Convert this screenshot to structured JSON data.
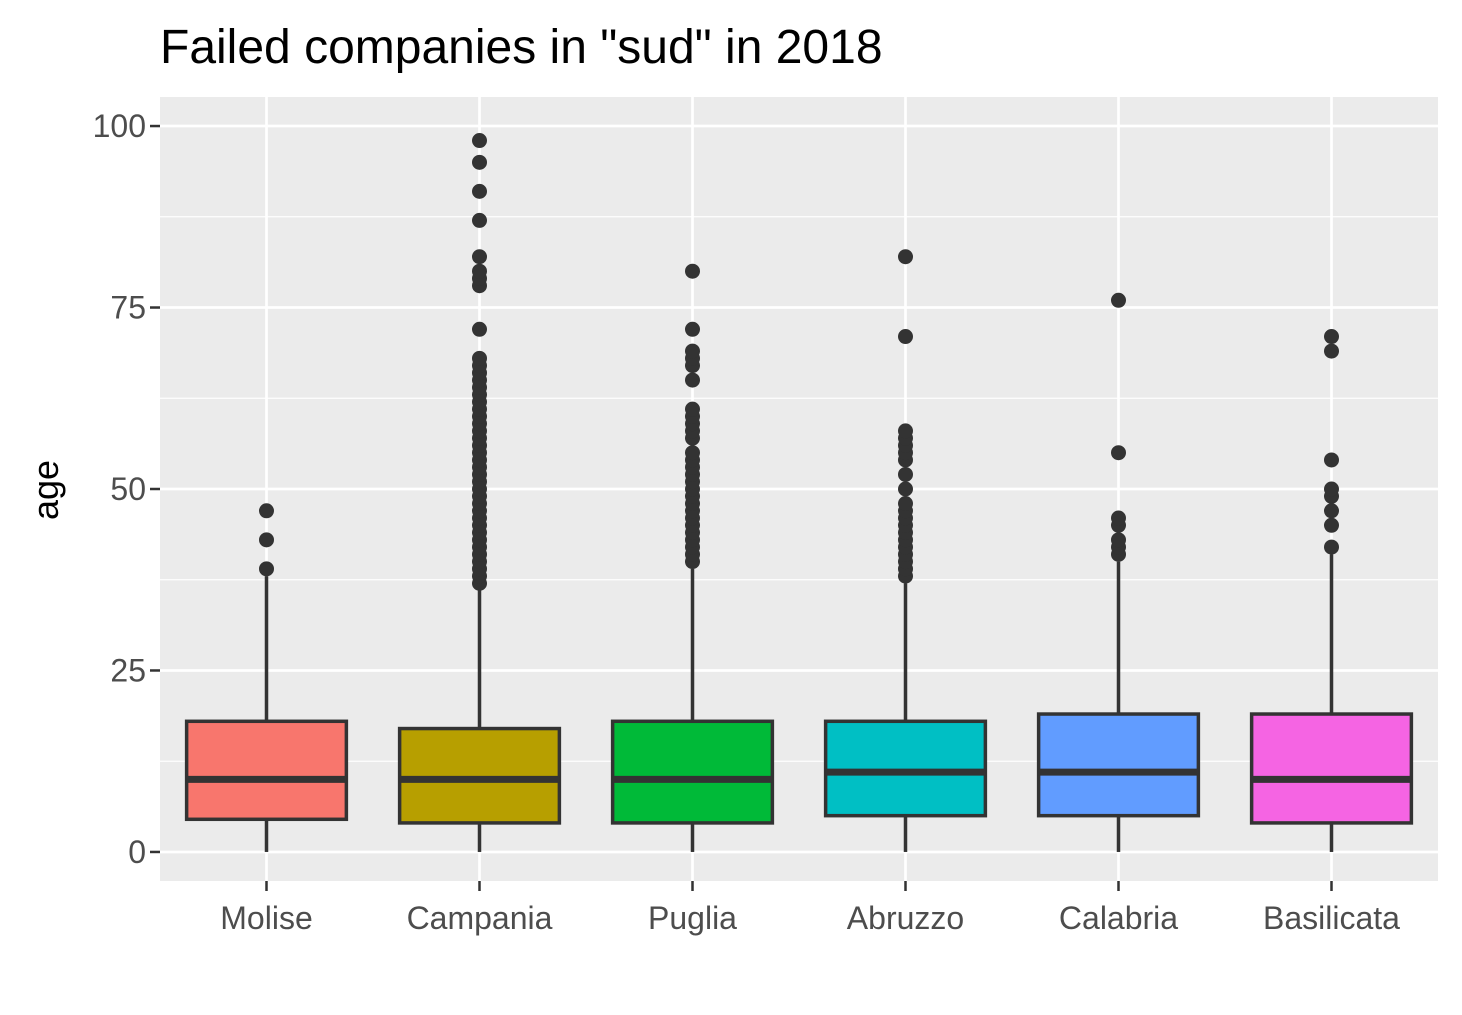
{
  "chart_data": {
    "type": "boxplot",
    "title": "Failed companies in \"sud\" in 2018",
    "xlabel": "",
    "ylabel": "age",
    "ylim": [
      -4,
      104
    ],
    "yticks": [
      0,
      25,
      50,
      75,
      100
    ],
    "ytick_labels": [
      "0",
      "25",
      "50",
      "75",
      "100"
    ],
    "grid": true,
    "legend": "none",
    "categories": [
      "Molise",
      "Campania",
      "Puglia",
      "Abruzzo",
      "Calabria",
      "Basilicata"
    ],
    "colors": [
      "#F8766D",
      "#B79F00",
      "#00BA38",
      "#00BFC4",
      "#619CFF",
      "#F564E3"
    ],
    "boxes": [
      {
        "category": "Molise",
        "whisker_low": 0,
        "q1": 4.5,
        "median": 10,
        "q3": 18,
        "whisker_high": 38,
        "outliers": [
          39,
          43,
          47
        ]
      },
      {
        "category": "Campania",
        "whisker_low": 0,
        "q1": 4,
        "median": 10,
        "q3": 17,
        "whisker_high": 36.5,
        "outliers": [
          37,
          38,
          39,
          40,
          41,
          42,
          43,
          44,
          45,
          46,
          47,
          48,
          49,
          50,
          51,
          52,
          53,
          54,
          55,
          56,
          57,
          58,
          59,
          60,
          61,
          62,
          63,
          64,
          65,
          66,
          67,
          68,
          72,
          78,
          79,
          80,
          82,
          87,
          91,
          95,
          98
        ]
      },
      {
        "category": "Puglia",
        "whisker_low": 0,
        "q1": 4,
        "median": 10,
        "q3": 18,
        "whisker_high": 39,
        "outliers": [
          40,
          41,
          42,
          43,
          44,
          45,
          46,
          47,
          48,
          49,
          50,
          51,
          52,
          53,
          54,
          55,
          57,
          58,
          59,
          60,
          61,
          65,
          67,
          68,
          69,
          72,
          80
        ]
      },
      {
        "category": "Abruzzo",
        "whisker_low": 0,
        "q1": 5,
        "median": 11,
        "q3": 18,
        "whisker_high": 37,
        "outliers": [
          38,
          39,
          40,
          41,
          42,
          43,
          44,
          45,
          46,
          47,
          48,
          50,
          52,
          54,
          55,
          56,
          57,
          58,
          71,
          82
        ]
      },
      {
        "category": "Calabria",
        "whisker_low": 0,
        "q1": 5,
        "median": 11,
        "q3": 19,
        "whisker_high": 40,
        "outliers": [
          41,
          42,
          43,
          45,
          46,
          55,
          76
        ]
      },
      {
        "category": "Basilicata",
        "whisker_low": 0,
        "q1": 4,
        "median": 10,
        "q3": 19,
        "whisker_high": 41,
        "outliers": [
          42,
          45,
          47,
          49,
          50,
          54,
          69,
          71
        ]
      }
    ]
  }
}
